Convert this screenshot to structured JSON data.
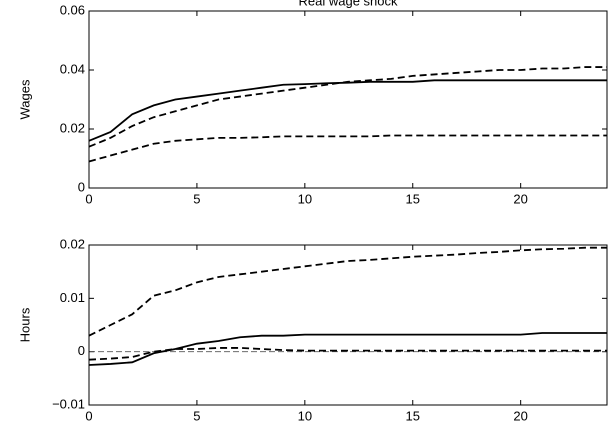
{
  "chart_data": [
    {
      "type": "line",
      "title": "Real wage shock",
      "y_label": "Wages",
      "x": [
        0,
        1,
        2,
        3,
        4,
        5,
        6,
        7,
        8,
        9,
        10,
        11,
        12,
        13,
        14,
        15,
        16,
        17,
        18,
        19,
        20,
        21,
        22,
        23,
        24
      ],
      "xlim": [
        0,
        24
      ],
      "xticks": [
        0,
        5,
        10,
        15,
        20
      ],
      "ylim": [
        0,
        0.06
      ],
      "yticks": [
        0,
        0.02,
        0.04,
        0.06
      ],
      "series": [
        {
          "color": "#000000",
          "dashed": false,
          "values": [
            0.016,
            0.019,
            0.025,
            0.028,
            0.03,
            0.031,
            0.032,
            0.033,
            0.034,
            0.035,
            0.0352,
            0.0355,
            0.0357,
            0.036,
            0.036,
            0.036,
            0.0365,
            0.0365,
            0.0365,
            0.0365,
            0.0365,
            0.0365,
            0.0365,
            0.0365,
            0.0365
          ]
        },
        {
          "color": "#000000",
          "dashed": true,
          "values": [
            0.014,
            0.017,
            0.021,
            0.024,
            0.026,
            0.028,
            0.03,
            0.031,
            0.032,
            0.033,
            0.034,
            0.035,
            0.036,
            0.0365,
            0.037,
            0.038,
            0.0385,
            0.039,
            0.0395,
            0.04,
            0.04,
            0.0405,
            0.0405,
            0.041,
            0.041
          ]
        },
        {
          "color": "#000000",
          "dashed": true,
          "values": [
            0.009,
            0.011,
            0.013,
            0.015,
            0.016,
            0.0165,
            0.017,
            0.017,
            0.0172,
            0.0175,
            0.0175,
            0.0175,
            0.0175,
            0.0175,
            0.0178,
            0.0178,
            0.0178,
            0.0178,
            0.0178,
            0.0178,
            0.0178,
            0.0178,
            0.0178,
            0.0178,
            0.0178
          ]
        }
      ]
    },
    {
      "type": "line",
      "y_label": "Hours",
      "zero_line": true,
      "x": [
        0,
        1,
        2,
        3,
        4,
        5,
        6,
        7,
        8,
        9,
        10,
        11,
        12,
        13,
        14,
        15,
        16,
        17,
        18,
        19,
        20,
        21,
        22,
        23,
        24
      ],
      "xlim": [
        0,
        24
      ],
      "xticks": [
        0,
        5,
        10,
        15,
        20
      ],
      "ylim": [
        -0.01,
        0.02
      ],
      "yticks": [
        {
          "value": -0.01,
          "label": "−0.01"
        },
        0,
        0.01,
        0.02
      ],
      "series": [
        {
          "color": "#000000",
          "dashed": true,
          "values": [
            0.003,
            0.005,
            0.007,
            0.0105,
            0.0115,
            0.013,
            0.014,
            0.0145,
            0.015,
            0.0155,
            0.016,
            0.0165,
            0.017,
            0.0172,
            0.0175,
            0.0178,
            0.018,
            0.0182,
            0.0185,
            0.0187,
            0.019,
            0.0192,
            0.0193,
            0.0195,
            0.0195
          ]
        },
        {
          "color": "#000000",
          "dashed": false,
          "values": [
            -0.0025,
            -0.0023,
            -0.002,
            -0.0003,
            0.0005,
            0.0015,
            0.002,
            0.0027,
            0.003,
            0.003,
            0.0032,
            0.0032,
            0.0032,
            0.0032,
            0.0032,
            0.0032,
            0.0032,
            0.0032,
            0.0032,
            0.0032,
            0.0032,
            0.0035,
            0.0035,
            0.0035,
            0.0035
          ]
        },
        {
          "color": "#000000",
          "dashed": true,
          "values": [
            -0.0015,
            -0.0013,
            -0.001,
            0,
            0.0005,
            0.0005,
            0.0007,
            0.0007,
            0.0005,
            0.0003,
            0.0002,
            0.0002,
            0.0002,
            0.0002,
            0.0002,
            0.0002,
            0.0002,
            0.0002,
            0.0002,
            0.0002,
            0.0002,
            0.0002,
            0.0002,
            0.0002,
            0.0002
          ]
        }
      ]
    }
  ]
}
